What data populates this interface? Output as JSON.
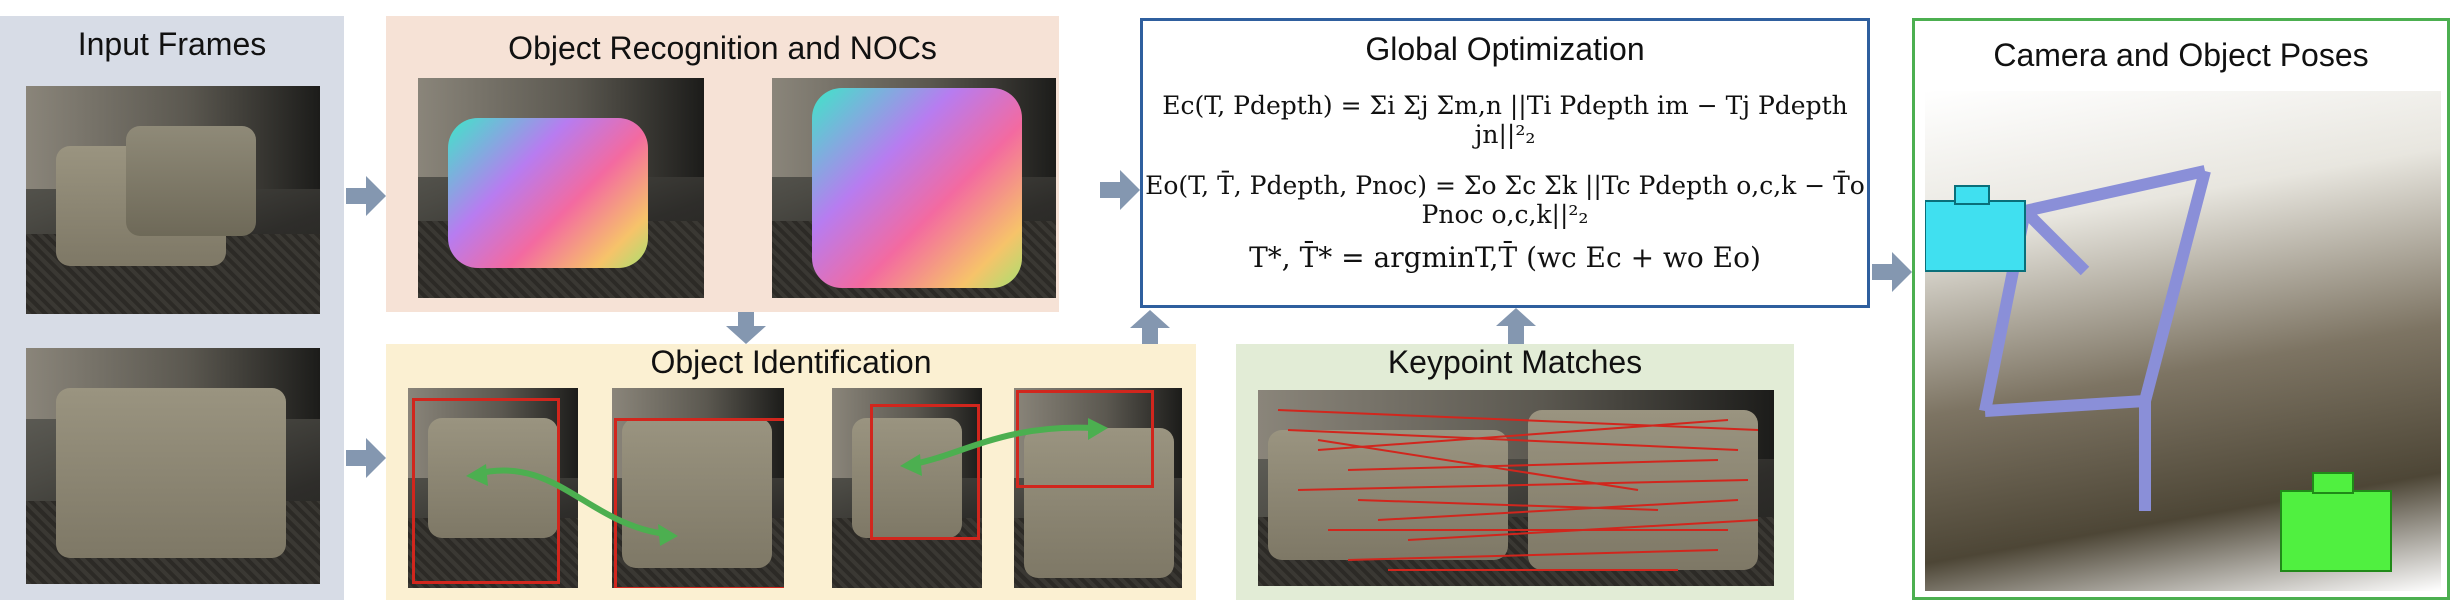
{
  "panels": {
    "input_frames": {
      "title": "Input Frames"
    },
    "recognition": {
      "title": "Object Recognition and NOCs"
    },
    "identification": {
      "title": "Object Identification"
    },
    "optimization": {
      "title": "Global Optimization",
      "eq1": "Ec(T, Pdepth) = Σi Σj Σm,n ||Ti Pdepth im − Tj Pdepth jn||²₂",
      "eq2": "Eo(T, T̄, Pdepth, Pnoc) = Σo Σc Σk ||Tc Pdepth o,c,k − T̄o Pnoc o,c,k||²₂",
      "eq3": "T*, T̄* = argminT,T̄ (wc Ec + wo Eo)"
    },
    "keypoints": {
      "title": "Keypoint Matches"
    },
    "poses": {
      "title": "Camera and Object Poses"
    }
  },
  "colors": {
    "input_bg": "#d7dce6",
    "recognition_bg": "#f6e2d6",
    "identification_bg": "#fbf0d2",
    "keypoint_bg": "#e2ecd6",
    "optimization_border": "#2f5f9e",
    "poses_border": "#4caf50",
    "arrow": "#8497b0",
    "match_arrow": "#4caf50",
    "box_red": "#d1261d"
  },
  "icons": [
    "camera-icon-cyan",
    "camera-icon-green",
    "flow-arrow"
  ]
}
